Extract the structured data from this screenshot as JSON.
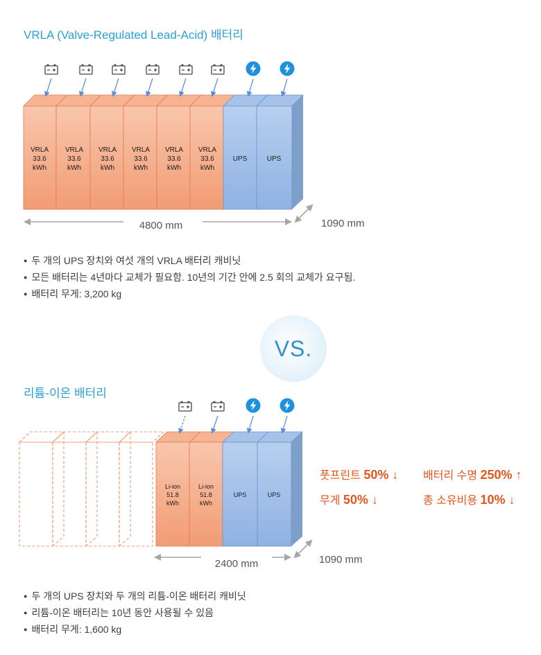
{
  "vrla": {
    "title": "VRLA (Valve-Regulated Lead-Acid) 배터리",
    "cabinet_name": "VRLA",
    "cabinet_capacity": "33.6",
    "cabinet_unit": "kWh",
    "ups_label": "UPS",
    "width_label": "4800 mm",
    "depth_label": "1090 mm",
    "bullets": [
      "두 개의 UPS 장치와 여섯 개의 VRLA 배터리 캐비닛",
      "모든 배터리는 4년마다 교체가 필요함. 10년의 기간 안에 2.5 회의 교체가 요구됨.",
      "배터리 무게: 3,200 kg"
    ]
  },
  "vs_label": "VS.",
  "liion": {
    "title": "리튬-이온 배터리",
    "cabinet_name": "Li-ion",
    "cabinet_capacity": "51.8",
    "cabinet_unit": "kWh",
    "ups_label": "UPS",
    "width_label": "2400 mm",
    "depth_label": "1090 mm",
    "claims": {
      "footprint_label": "풋프린트",
      "footprint_value": "50% ↓",
      "life_label": "배터리 수명",
      "life_value": "250% ↑",
      "weight_label": "무게",
      "weight_value": "50% ↓",
      "tco_label": "총 소유비용",
      "tco_value": "10% ↓"
    },
    "bullets": [
      "두 개의 UPS 장치와 두 개의 리튬-이온 배터리 캐비닛",
      "리튬-이온 배터리는 10년 동안 사용될 수 있음",
      "배터리 무게: 1,600 kg"
    ]
  },
  "colors": {
    "title": "#2a9fd8",
    "battery_front": "#f4a37e",
    "ups_front": "#8fb3e0",
    "claim": "#e4561b",
    "bolt": "#1e90e0"
  },
  "icons": [
    "battery-icon",
    "lightning-icon"
  ]
}
